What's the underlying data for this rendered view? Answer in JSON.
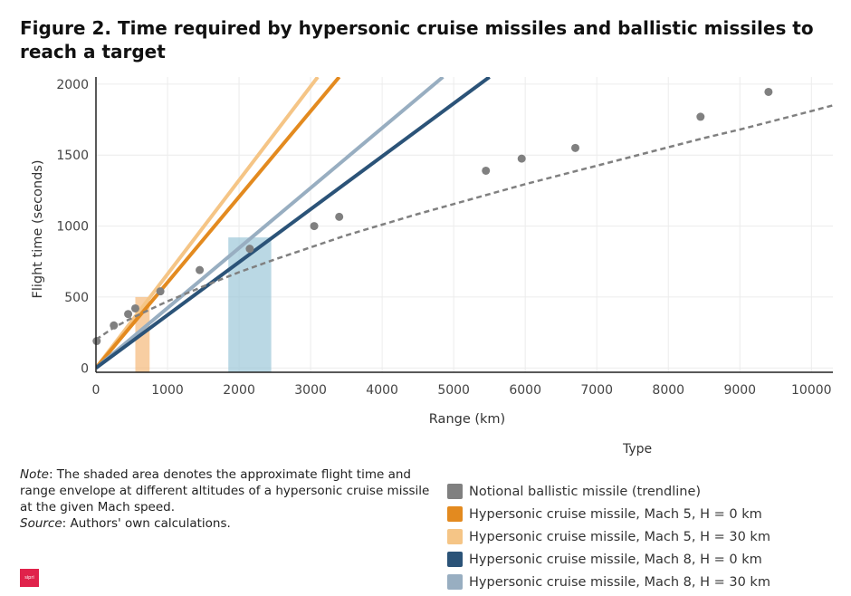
{
  "title": "Figure 2. Time required by hypersonic cruise missiles and ballistic missiles to reach a target",
  "note": {
    "note_label": "Note",
    "note_text": ": The shaded area denotes the approximate flight time and range envelope at different altitudes of a hypersonic cruise missile at the given Mach speed.",
    "source_label": "Source",
    "source_text": ": Authors' own calculations."
  },
  "logo_text": "sipri",
  "chart_data": {
    "type": "line",
    "title": "Figure 2. Time required by hypersonic cruise missiles and ballistic missiles to reach a target",
    "xlabel": "Range (km)",
    "ylabel": "Flight time (seconds)",
    "xlim": [
      0,
      10300
    ],
    "ylim": [
      -30,
      2050
    ],
    "x_ticks": [
      0,
      1000,
      2000,
      3000,
      4000,
      5000,
      6000,
      7000,
      8000,
      9000,
      10000
    ],
    "y_ticks": [
      0,
      500,
      1000,
      1500,
      2000
    ],
    "grid": true,
    "legend_title": "Type",
    "legend_position": "bottom-right",
    "series": [
      {
        "name": "Notional ballistic missile (trendline)",
        "color": "#808080",
        "style": "dashed",
        "trend_x": [
          0,
          250,
          500,
          1000,
          1500,
          2000,
          2500,
          3000,
          3500,
          4000,
          4500,
          5000,
          5500,
          6000,
          6500,
          7000,
          7500,
          8000,
          8500,
          9000,
          9500,
          10000,
          10300
        ],
        "trend_y": [
          200,
          285,
          352,
          470,
          575,
          675,
          765,
          850,
          935,
          1010,
          1085,
          1155,
          1225,
          1295,
          1360,
          1425,
          1490,
          1555,
          1620,
          1680,
          1745,
          1810,
          1850
        ],
        "points_x": [
          10,
          250,
          450,
          550,
          900,
          1450,
          2150,
          3050,
          3400,
          5450,
          5950,
          6700,
          8450,
          9400
        ],
        "points_y": [
          190,
          300,
          380,
          420,
          540,
          690,
          840,
          1000,
          1065,
          1390,
          1475,
          1550,
          1770,
          1945
        ]
      },
      {
        "name": "Hypersonic cruise missile, Mach 5, H = 0 km",
        "color": "#e38a1f",
        "x": [
          0,
          3400
        ],
        "y": [
          0,
          2050
        ]
      },
      {
        "name": "Hypersonic cruise missile, Mach 5, H = 30 km",
        "color": "#f5c586",
        "x": [
          0,
          3100
        ],
        "y": [
          0,
          2050
        ]
      },
      {
        "name": "Hypersonic cruise missile, Mach 8, H = 0 km",
        "color": "#2b5378",
        "x": [
          0,
          5500
        ],
        "y": [
          0,
          2050
        ]
      },
      {
        "name": "Hypersonic cruise missile, Mach 8, H = 30 km",
        "color": "#98aec1",
        "x": [
          0,
          4850
        ],
        "y": [
          0,
          2050
        ]
      }
    ],
    "shaded_areas": [
      {
        "x_range": [
          550,
          750
        ],
        "y_range": [
          -30,
          500
        ],
        "color": "#f5b97b"
      },
      {
        "x_range": [
          1850,
          2450
        ],
        "y_range": [
          -30,
          920
        ],
        "color": "#9cc8d8"
      }
    ]
  }
}
